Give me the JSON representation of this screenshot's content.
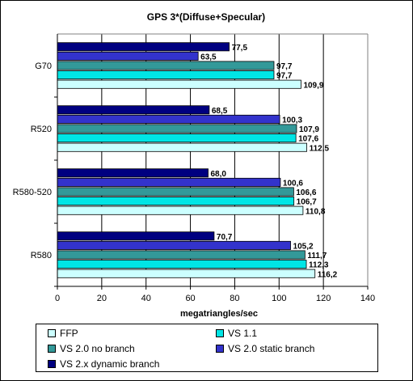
{
  "chart_data": {
    "type": "bar",
    "orientation": "horizontal",
    "title": "GPS 3*(Diffuse+Specular)",
    "xlabel": "megatriangles/sec",
    "ylabel": "",
    "xlim": [
      0,
      140
    ],
    "x_ticks": [
      "0",
      "20",
      "40",
      "60",
      "80",
      "100",
      "120",
      "140"
    ],
    "grid": true,
    "legend_position": "bottom",
    "categories": [
      "G70",
      "R520",
      "R580-520",
      "R580"
    ],
    "series": [
      {
        "name": "VS 2.x dynamic branch",
        "color": "#000080",
        "values": [
          77.5,
          68.5,
          68.0,
          70.7
        ],
        "labels": [
          "77,5",
          "68,5",
          "68,0",
          "70,7"
        ]
      },
      {
        "name": "VS 2.0 static branch",
        "color": "#3333cc",
        "values": [
          63.5,
          100.3,
          100.6,
          105.2
        ],
        "labels": [
          "63,5",
          "100,3",
          "100,6",
          "105,2"
        ]
      },
      {
        "name": "VS 2.0 no branch",
        "color": "#339999",
        "values": [
          97.7,
          107.9,
          106.6,
          111.7
        ],
        "labels": [
          "97,7",
          "107,9",
          "106,6",
          "111,7"
        ]
      },
      {
        "name": "VS 1.1",
        "color": "#00e5e5",
        "values": [
          97.7,
          107.6,
          106.7,
          112.3
        ],
        "labels": [
          "97,7",
          "107,6",
          "106,7",
          "112,3"
        ]
      },
      {
        "name": "FFP",
        "color": "#ccffff",
        "values": [
          109.9,
          112.5,
          110.8,
          116.2
        ],
        "labels": [
          "109,9",
          "112,5",
          "110,8",
          "116,2"
        ]
      }
    ],
    "legend_order": [
      "FFP",
      "VS 1.1",
      "VS 2.0 no branch",
      "VS 2.0 static branch",
      "VS 2.x dynamic branch"
    ]
  }
}
